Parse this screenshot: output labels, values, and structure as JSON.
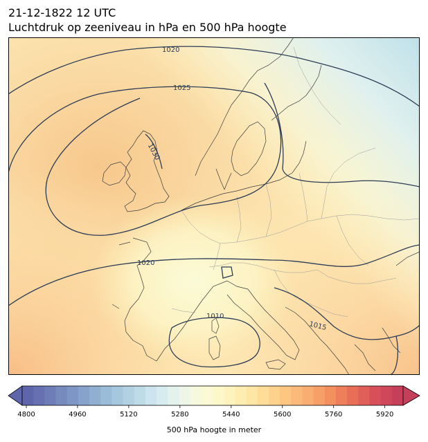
{
  "header": {
    "date_line": "21-12-1822 12 UTC",
    "description": "Luchtdruk op zeeniveau in hPa en 500 hPa hoogte"
  },
  "map": {
    "region": "Europe",
    "isobar_labels": [
      "1020",
      "1025",
      "1030",
      "1020",
      "1010",
      "1015"
    ],
    "isobar_color": "#2d3b55"
  },
  "colorbar": {
    "title": "500 hPa hoogte in meter",
    "tick_labels": [
      "4800",
      "4960",
      "5120",
      "5280",
      "5440",
      "5600",
      "5760",
      "5920"
    ],
    "min": 4800,
    "max": 5990,
    "palette": [
      "#5e65ab",
      "#6f7eb8",
      "#7f98c6",
      "#92b2d3",
      "#a9cbe0",
      "#c2deea",
      "#dceff2",
      "#f3f8e1",
      "#fdfbd0",
      "#fef0b6",
      "#fee19d",
      "#fdcb85",
      "#fab174",
      "#f4935f",
      "#e97057",
      "#d85059",
      "#c53e5a"
    ]
  }
}
